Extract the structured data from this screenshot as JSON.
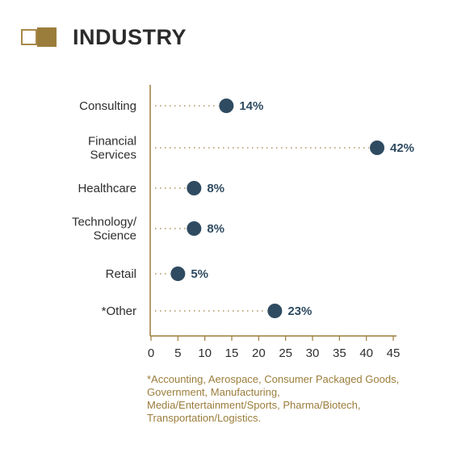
{
  "header": {
    "title": "INDUSTRY"
  },
  "colors": {
    "accent": "#9b7d3b",
    "dot": "#2f4b61",
    "text": "#2e2e2e"
  },
  "chart_data": {
    "type": "scatter",
    "style": "dot-plot",
    "categories": [
      [
        "Consulting"
      ],
      [
        "Financial",
        "Services"
      ],
      [
        "Healthcare"
      ],
      [
        "Technology/",
        "Science"
      ],
      [
        "Retail"
      ],
      [
        "*Other"
      ]
    ],
    "values": [
      14,
      42,
      8,
      8,
      5,
      23
    ],
    "value_labels": [
      "14%",
      "42%",
      "8%",
      "8%",
      "5%",
      "23%"
    ],
    "xlim": [
      0,
      45
    ],
    "xticks": [
      "0",
      "5",
      "10",
      "15",
      "20",
      "25",
      "30",
      "35",
      "40",
      "45"
    ],
    "grid": false,
    "legend": "none"
  },
  "footnote": "*Accounting, Aerospace, Consumer Packaged Goods, Government, Manufacturing, Media/Entertainment/Sports, Pharma/Biotech, Transportation/Logistics."
}
